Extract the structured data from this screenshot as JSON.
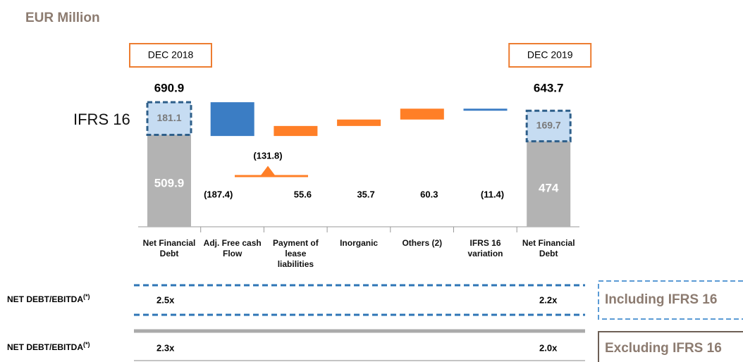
{
  "chart_data": {
    "type": "waterfall",
    "title": "EUR Million",
    "side_label": "IFRS 16",
    "base_color": "#b3b3b3",
    "ifrs16_color": "#c6dcf2",
    "decrease_color": "#3b7dc4",
    "increase_color": "#ff7f27",
    "bars": [
      {
        "category": "Net Financial Debt",
        "header": "DEC 2018",
        "total": 690.9,
        "base": 509.9,
        "ifrs16": 181.1
      },
      {
        "category": "Adj. Free cash Flow",
        "value": -187.4,
        "value_label": "(187.4)"
      },
      {
        "category": "Payment of lease liabilities",
        "value": 55.6
      },
      {
        "category": "Inorganic",
        "value": 35.7
      },
      {
        "category": "Others (2)",
        "value": 60.3
      },
      {
        "category": "IFRS 16 variation",
        "value": -11.4,
        "value_label": "(11.4)"
      },
      {
        "category": "Net Financial Debt",
        "header": "DEC 2019",
        "total": 643.7,
        "base": 474.0,
        "ifrs16": 169.7
      }
    ],
    "annotation": "(131.8)"
  },
  "ratios": [
    {
      "label": "NET DEBT/EBITDA",
      "note": "(*)",
      "start": "2.5x",
      "end": "2.2x",
      "tag": "Including IFRS 16"
    },
    {
      "label": "NET DEBT/EBITDA",
      "note": "(*)",
      "start": "2.3x",
      "end": "2.0x",
      "tag": "Excluding IFRS 16"
    }
  ]
}
